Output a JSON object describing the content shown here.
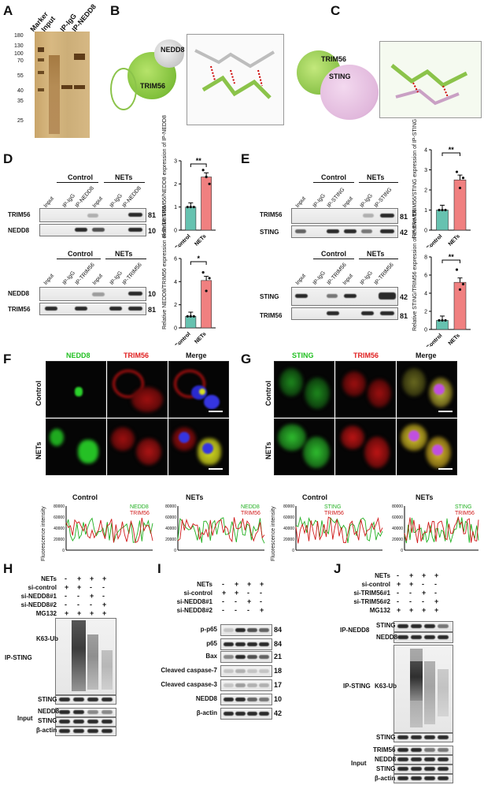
{
  "panels": {
    "A": "A",
    "B": "B",
    "C": "C",
    "D": "D",
    "E": "E",
    "F": "F",
    "G": "G",
    "H": "H",
    "I": "I",
    "J": "J"
  },
  "panelA": {
    "lanes": [
      "Marker",
      "Input",
      "IP-IgG",
      "IP-NEDD8"
    ],
    "markers": [
      "180",
      "130",
      "100",
      "70",
      "55",
      "40",
      "35",
      "25"
    ]
  },
  "panelB": {
    "labels": [
      "NEDD8",
      "TRIM56"
    ]
  },
  "panelC": {
    "labels": [
      "TRIM56",
      "STING"
    ]
  },
  "panelD": {
    "top": {
      "groups": [
        "Control",
        "NETs"
      ],
      "lanes": [
        "Input",
        "IP-IgG",
        "IP-NEDD8",
        "Input",
        "IP-IgG",
        "IP-NEDD8"
      ],
      "rows": [
        {
          "name": "TRIM56",
          "kda": "81"
        },
        {
          "name": "NEDD8",
          "kda": "10"
        }
      ]
    },
    "bottom": {
      "groups": [
        "Control",
        "NETs"
      ],
      "lanes": [
        "Input",
        "IP-IgG",
        "IP-TRIM56",
        "Input",
        "IP-IgG",
        "IP-TRIM56"
      ],
      "rows": [
        {
          "name": "NEDD8",
          "kda": "10"
        },
        {
          "name": "TRIM56",
          "kda": "81"
        }
      ]
    },
    "chart1": {
      "ylabel": "Relative TRIM56/NEDD8 expression of IP-NEDD8",
      "sig": "**"
    },
    "chart2": {
      "ylabel": "Relative NEDD8/TRIM56 expression of IP-TRIM56",
      "sig": "*"
    }
  },
  "panelE": {
    "top": {
      "groups": [
        "Control",
        "NETs"
      ],
      "lanes": [
        "Input",
        "IP-IgG",
        "IP-STING",
        "Input",
        "IP-IgG",
        "IP-STING"
      ],
      "rows": [
        {
          "name": "TRIM56",
          "kda": "81"
        },
        {
          "name": "STING",
          "kda": "42"
        }
      ]
    },
    "bottom": {
      "groups": [
        "Control",
        "NETs"
      ],
      "lanes": [
        "Input",
        "IP-IgG",
        "IP-TRIM56",
        "Input",
        "IP-IgG",
        "IP-TRIM56"
      ],
      "rows": [
        {
          "name": "STING",
          "kda": "42"
        },
        {
          "name": "TRIM56",
          "kda": "81"
        }
      ]
    },
    "chart1": {
      "ylabel": "Relative TRIM56/STING expression of IP-STING",
      "sig": "**"
    },
    "chart2": {
      "ylabel": "Relative STING/TRIM56 expression of IP-TRIM56",
      "sig": "**"
    }
  },
  "chart_data": [
    {
      "type": "bar",
      "panel": "D-top",
      "categories": [
        "Control",
        "NETs"
      ],
      "values": [
        1.0,
        2.3
      ],
      "points": [
        [
          1,
          1,
          1
        ],
        [
          2.6,
          2.3,
          2.0
        ]
      ],
      "ylabel": "Relative TRIM56/NEDD8 expression of IP-NEDD8",
      "ylim": [
        0,
        3
      ],
      "yticks": [
        "0",
        "1",
        "2",
        "3"
      ],
      "colors": [
        "#66c2b0",
        "#f08080"
      ]
    },
    {
      "type": "bar",
      "panel": "D-bottom",
      "categories": [
        "Control",
        "NETs"
      ],
      "values": [
        1.0,
        4.1
      ],
      "points": [
        [
          1,
          1,
          1
        ],
        [
          4.8,
          3.2,
          4.3
        ]
      ],
      "ylabel": "Relative NEDD8/TRIM56 expression of IP-TRIM56",
      "ylim": [
        0,
        6
      ],
      "yticks": [
        "0",
        "2",
        "4",
        "6"
      ],
      "colors": [
        "#66c2b0",
        "#f08080"
      ]
    },
    {
      "type": "bar",
      "panel": "E-top",
      "categories": [
        "Control",
        "NETs"
      ],
      "values": [
        1.0,
        2.5
      ],
      "points": [
        [
          1,
          1,
          1
        ],
        [
          2.9,
          2.1,
          2.6
        ]
      ],
      "ylabel": "Relative TRIM56/STING expression of IP-STING",
      "ylim": [
        0,
        4
      ],
      "yticks": [
        "0",
        "1",
        "2",
        "3",
        "4"
      ],
      "colors": [
        "#66c2b0",
        "#f08080"
      ]
    },
    {
      "type": "bar",
      "panel": "E-bottom",
      "categories": [
        "Control",
        "NETs"
      ],
      "values": [
        1.0,
        5.2
      ],
      "points": [
        [
          1,
          1,
          1
        ],
        [
          6.6,
          4.4,
          5.0
        ]
      ],
      "ylabel": "Relative STING/TRIM56 expression of IP-TRIM56",
      "ylim": [
        0,
        8
      ],
      "yticks": [
        "0",
        "2",
        "4",
        "6",
        "8"
      ],
      "colors": [
        "#66c2b0",
        "#f08080"
      ]
    }
  ],
  "panelF": {
    "channels": [
      "NEDD8",
      "TRIM56",
      "Merge"
    ],
    "rows": [
      "Control",
      "NETs"
    ],
    "profiles": [
      {
        "title": "Control",
        "legend": [
          "NEDD8",
          "TRIM56"
        ],
        "ylabel": "Fluorescence intensity",
        "yticks": [
          "0",
          "20000",
          "40000",
          "60000",
          "80000"
        ]
      },
      {
        "title": "NETs",
        "legend": [
          "NEDD8",
          "TRIM56"
        ],
        "yticks": [
          "0",
          "20000",
          "40000",
          "60000",
          "80000"
        ]
      }
    ]
  },
  "panelG": {
    "channels": [
      "STING",
      "TRIM56",
      "Merge"
    ],
    "rows": [
      "Control",
      "NETs"
    ],
    "profiles": [
      {
        "title": "Control",
        "legend": [
          "STING",
          "TRIM56"
        ],
        "ylabel": "Fluorescence intensity",
        "yticks": [
          "0",
          "20000",
          "40000",
          "60000",
          "80000"
        ]
      },
      {
        "title": "NETs",
        "legend": [
          "STING",
          "TRIM56"
        ],
        "yticks": [
          "0",
          "20000",
          "40000",
          "60000",
          "80000"
        ]
      }
    ]
  },
  "panelH": {
    "conds": [
      {
        "name": "NETs",
        "v": [
          "-",
          "+",
          "+",
          "+"
        ]
      },
      {
        "name": "si-control",
        "v": [
          "+",
          "+",
          "-",
          "-"
        ]
      },
      {
        "name": "si-NEDD8#1",
        "v": [
          "-",
          "-",
          "+",
          "-"
        ]
      },
      {
        "name": "si-NEDD8#2",
        "v": [
          "-",
          "-",
          "-",
          "+"
        ]
      },
      {
        "name": "MG132",
        "v": [
          "+",
          "+",
          "+",
          "+"
        ]
      }
    ],
    "ip": "IP-STING",
    "input": "Input",
    "rows": [
      "K63-Ub",
      "STING",
      "NEDD8",
      "STING",
      "β-actin"
    ]
  },
  "panelI": {
    "conds": [
      {
        "name": "NETs",
        "v": [
          "-",
          "+",
          "+",
          "+"
        ]
      },
      {
        "name": "si-control",
        "v": [
          "+",
          "+",
          "-",
          "-"
        ]
      },
      {
        "name": "si-NEDD8#1",
        "v": [
          "-",
          "-",
          "+",
          "-"
        ]
      },
      {
        "name": "si-NEDD8#2",
        "v": [
          "-",
          "-",
          "-",
          "+"
        ]
      }
    ],
    "rows": [
      {
        "name": "p-p65",
        "kda": "84"
      },
      {
        "name": "p65",
        "kda": "84"
      },
      {
        "name": "Bax",
        "kda": "21"
      },
      {
        "name": "Cleaved caspase-7",
        "kda": "18"
      },
      {
        "name": "Cleaved caspase-3",
        "kda": "17"
      },
      {
        "name": "NEDD8",
        "kda": "10"
      },
      {
        "name": "β-actin",
        "kda": "42"
      }
    ]
  },
  "panelJ": {
    "conds": [
      {
        "name": "NETs",
        "v": [
          "-",
          "+",
          "+",
          "+"
        ]
      },
      {
        "name": "si-control",
        "v": [
          "+",
          "+",
          "-",
          "-"
        ]
      },
      {
        "name": "si-TRIM56#1",
        "v": [
          "-",
          "-",
          "+",
          "-"
        ]
      },
      {
        "name": "si-TRIM56#2",
        "v": [
          "-",
          "-",
          "-",
          "+"
        ]
      },
      {
        "name": "MG132",
        "v": [
          "+",
          "+",
          "+",
          "+"
        ]
      }
    ],
    "ip1": "IP-NEDD8",
    "ip2": "IP-STING",
    "input": "Input",
    "rows": [
      "STING",
      "NEDD8",
      "K63-Ub",
      "STING",
      "TRIM56",
      "NEDD8",
      "STING",
      "β-actin"
    ]
  }
}
